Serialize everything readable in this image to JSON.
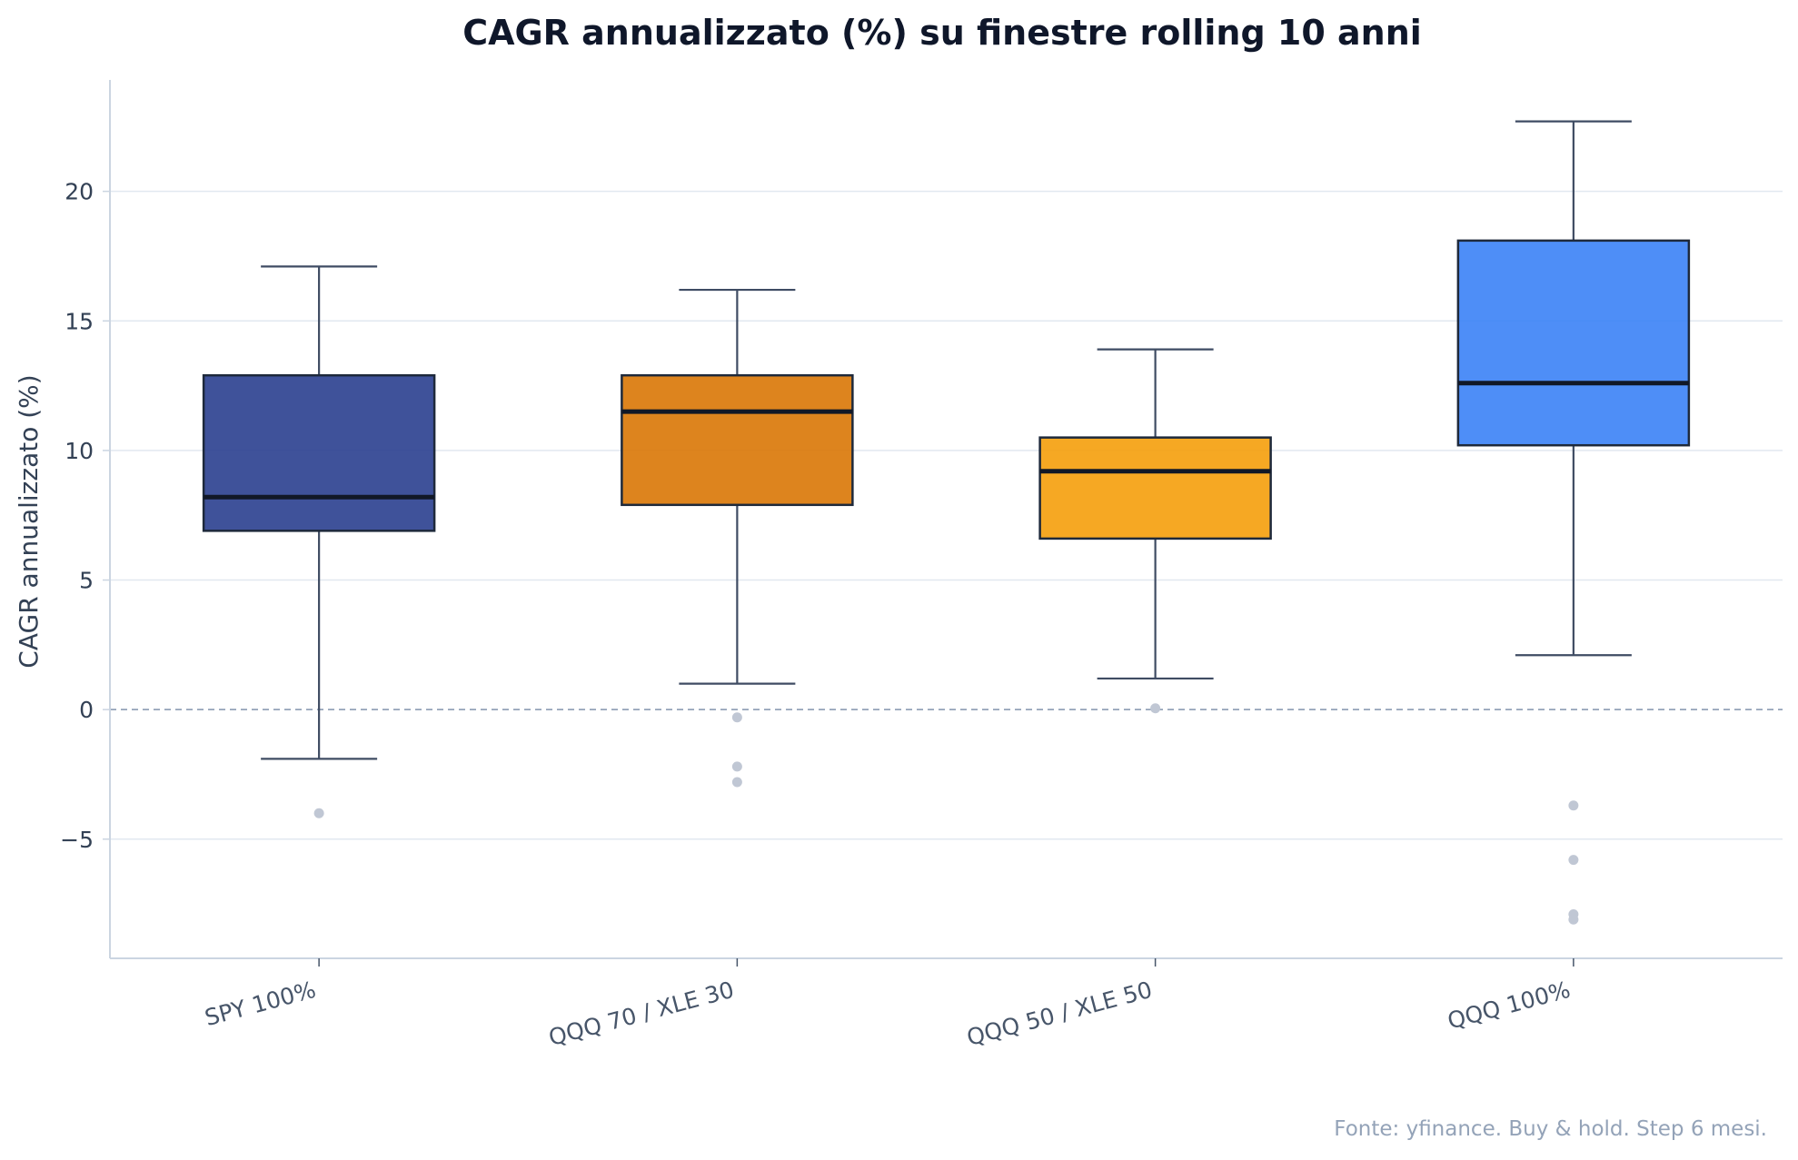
{
  "chart_data": {
    "type": "box",
    "title": "CAGR annualizzato (%) su finestre rolling 10 anni",
    "xlabel": "",
    "ylabel": "CAGR annualizzato (%)",
    "ylim": [
      -9.6,
      24.3
    ],
    "yticks": [
      -5,
      0,
      5,
      10,
      15,
      20
    ],
    "ytick_labels": [
      "−5",
      "0",
      "5",
      "10",
      "15",
      "20"
    ],
    "grid": "horizontal",
    "reference_line": {
      "y": 0,
      "style": "dashed"
    },
    "categories": [
      "SPY 100%",
      "QQQ 70 / XLE 30",
      "QQQ 50 / XLE 50",
      "QQQ 100%"
    ],
    "boxes": [
      {
        "category": "SPY 100%",
        "color": "#2a3f8f",
        "whisker_low": -1.9,
        "q1": 6.9,
        "median": 8.2,
        "q3": 12.9,
        "whisker_high": 17.1,
        "outliers": [
          -4.0
        ]
      },
      {
        "category": "QQQ 70 / XLE 30",
        "color": "#d97706",
        "whisker_low": 1.0,
        "q1": 7.9,
        "median": 11.5,
        "q3": 12.9,
        "whisker_high": 16.2,
        "outliers": [
          -0.3,
          -2.2,
          -2.8
        ]
      },
      {
        "category": "QQQ 50 / XLE 50",
        "color": "#f59e0b",
        "whisker_low": 1.2,
        "q1": 6.6,
        "median": 9.2,
        "q3": 10.5,
        "whisker_high": 13.9,
        "outliers": [
          0.05
        ]
      },
      {
        "category": "QQQ 100%",
        "color": "#3b82f6",
        "whisker_low": 2.1,
        "q1": 10.2,
        "median": 12.6,
        "q3": 18.1,
        "whisker_high": 22.7,
        "outliers": [
          -3.7,
          -5.8,
          -7.9,
          -8.1
        ]
      }
    ],
    "source_note": "Fonte: yfinance. Buy & hold. Step 6 mesi."
  }
}
